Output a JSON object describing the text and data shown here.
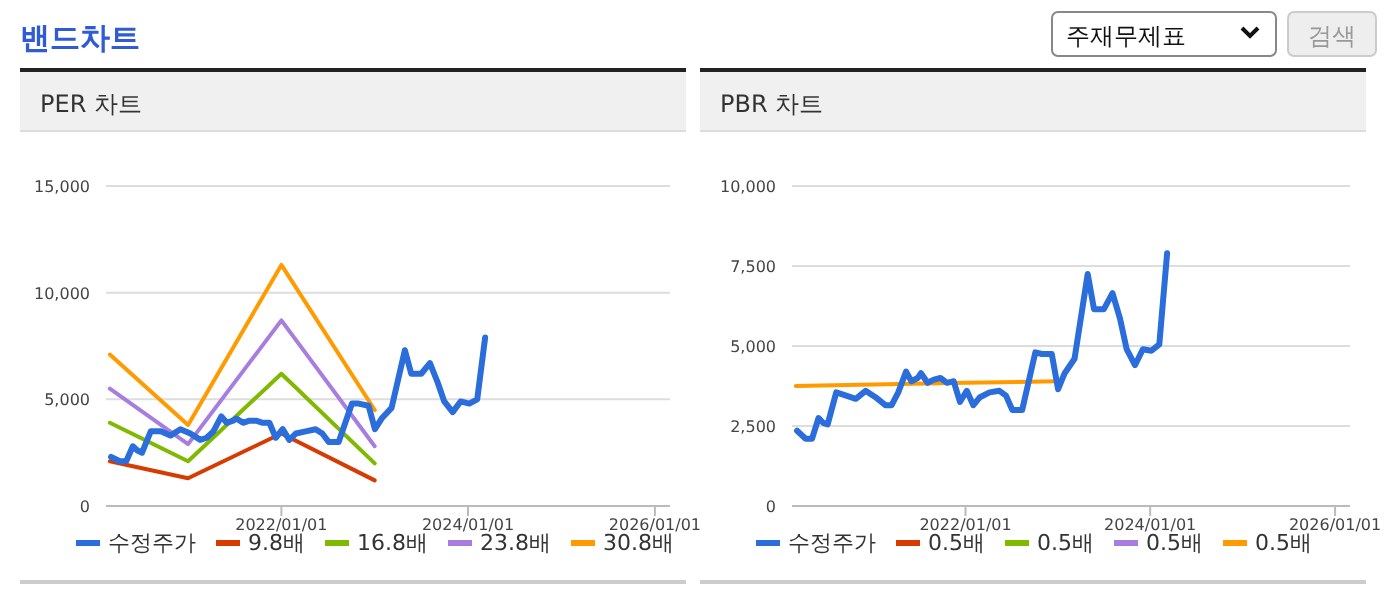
{
  "chart_data": [
    {
      "type": "other",
      "title": "밴드차트",
      "annotations": [
        "주재무제표",
        "검색"
      ]
    },
    {
      "type": "line",
      "title": "PER 차트",
      "xlim": [
        "2020-02-15",
        "2026-03-01"
      ],
      "xticks": [
        {
          "value": "2022-01-01",
          "label": "2022/01/01"
        },
        {
          "value": "2024-01-01",
          "label": "2024/01/01"
        },
        {
          "value": "2026-01-01",
          "label": "2026/01/01"
        }
      ],
      "ylim": [
        0,
        15000
      ],
      "yticks": [
        0,
        {
          "value": 5000,
          "label": "5,000"
        },
        {
          "value": 10000,
          "label": "10,000"
        },
        {
          "value": 15000,
          "label": "15,000"
        }
      ],
      "grid": "y",
      "legend": "bottom",
      "marker": "none",
      "line_style": "solid",
      "series": [
        {
          "name": "수정주가",
          "color": "#2a6ddb",
          "x": [
            "2020-03-06",
            "2020-04-09",
            "2020-05-04",
            "2020-05-30",
            "2020-06-17",
            "2020-07-05",
            "2020-08-08",
            "2020-09-16",
            "2020-10-24",
            "2020-12-02",
            "2021-01-10",
            "2021-02-18",
            "2021-03-15",
            "2021-04-10",
            "2021-05-11",
            "2021-06-01",
            "2021-06-26",
            "2021-07-09",
            "2021-08-04",
            "2021-08-29",
            "2021-09-24",
            "2021-10-20",
            "2021-11-15",
            "2021-12-10",
            "2022-01-06",
            "2022-02-01",
            "2022-02-27",
            "2022-04-06",
            "2022-05-15",
            "2022-06-10",
            "2022-07-05",
            "2022-08-13",
            "2022-10-04",
            "2022-10-30",
            "2022-12-08",
            "2023-01-02",
            "2023-01-28",
            "2023-03-08",
            "2023-04-29",
            "2023-05-24",
            "2023-07-02",
            "2023-08-05",
            "2023-09-04",
            "2023-09-30",
            "2023-11-02",
            "2023-12-03",
            "2024-01-06",
            "2024-02-06",
            "2024-03-08"
          ],
          "values": [
            2300,
            2100,
            2100,
            2800,
            2600,
            2500,
            3500,
            3500,
            3300,
            3600,
            3400,
            3100,
            3200,
            3500,
            4200,
            3900,
            4000,
            4100,
            3900,
            4000,
            4000,
            3900,
            3900,
            3200,
            3600,
            3100,
            3400,
            3500,
            3600,
            3400,
            3000,
            3000,
            4800,
            4800,
            4700,
            3600,
            4100,
            4600,
            7300,
            6200,
            6200,
            6700,
            5800,
            4900,
            4400,
            4900,
            4800,
            5000,
            7900
          ]
        },
        {
          "name": "9.8배",
          "color": "#d83b01",
          "x": [
            "2020-03-01",
            "2021-01-01",
            "2022-01-01",
            "2023-01-01"
          ],
          "values": [
            2100,
            1300,
            3400,
            1200
          ]
        },
        {
          "name": "16.8배",
          "color": "#7fba00",
          "x": [
            "2020-03-01",
            "2021-01-01",
            "2022-01-01",
            "2023-01-01"
          ],
          "values": [
            3900,
            2100,
            6200,
            2000
          ]
        },
        {
          "name": "23.8배",
          "color": "#a77ee0",
          "x": [
            "2020-03-01",
            "2021-01-01",
            "2022-01-01",
            "2023-01-01"
          ],
          "values": [
            5500,
            2900,
            8700,
            2800
          ]
        },
        {
          "name": "30.8배",
          "color": "#ff9a00",
          "x": [
            "2020-03-01",
            "2021-01-01",
            "2022-01-01",
            "2023-01-01"
          ],
          "values": [
            7100,
            3800,
            11300,
            4500
          ]
        }
      ]
    },
    {
      "type": "line",
      "title": "PBR 차트",
      "xlim": [
        "2020-02-15",
        "2026-03-01"
      ],
      "xticks": [
        {
          "value": "2022-01-01",
          "label": "2022/01/01"
        },
        {
          "value": "2024-01-01",
          "label": "2024/01/01"
        },
        {
          "value": "2026-01-01",
          "label": "2026/01/01"
        }
      ],
      "ylim": [
        0,
        10000
      ],
      "yticks": [
        0,
        {
          "value": 2500,
          "label": "2,500"
        },
        {
          "value": 5000,
          "label": "5,000"
        },
        {
          "value": 7500,
          "label": "7,500"
        },
        {
          "value": 10000,
          "label": "10,000"
        }
      ],
      "grid": "y",
      "legend": "bottom",
      "marker": "none",
      "line_style": "solid",
      "series": [
        {
          "name": "수정주가",
          "color": "#2a6ddb",
          "x": [
            "2020-03-06",
            "2020-04-09",
            "2020-05-04",
            "2020-05-30",
            "2020-06-17",
            "2020-07-05",
            "2020-08-08",
            "2020-09-16",
            "2020-10-24",
            "2020-12-02",
            "2021-01-10",
            "2021-02-18",
            "2021-03-15",
            "2021-04-10",
            "2021-05-11",
            "2021-06-01",
            "2021-06-26",
            "2021-07-09",
            "2021-08-04",
            "2021-08-29",
            "2021-09-24",
            "2021-10-20",
            "2021-11-15",
            "2021-12-10",
            "2022-01-06",
            "2022-02-01",
            "2022-02-27",
            "2022-04-06",
            "2022-05-15",
            "2022-06-10",
            "2022-07-05",
            "2022-08-13",
            "2022-10-04",
            "2022-10-30",
            "2022-12-08",
            "2023-01-02",
            "2023-01-28",
            "2023-03-08",
            "2023-04-29",
            "2023-05-24",
            "2023-07-02",
            "2023-08-05",
            "2023-09-04",
            "2023-09-30",
            "2023-11-02",
            "2023-12-03",
            "2024-01-06",
            "2024-02-06",
            "2024-03-08"
          ],
          "values": [
            2350,
            2100,
            2100,
            2750,
            2600,
            2550,
            3550,
            3450,
            3350,
            3600,
            3400,
            3150,
            3150,
            3550,
            4200,
            3900,
            4000,
            4150,
            3850,
            3950,
            4000,
            3850,
            3900,
            3250,
            3600,
            3150,
            3400,
            3550,
            3600,
            3450,
            3000,
            3000,
            4800,
            4750,
            4750,
            3650,
            4150,
            4600,
            7250,
            6150,
            6150,
            6650,
            5850,
            4900,
            4400,
            4900,
            4850,
            5050,
            7900
          ]
        },
        {
          "name": "0.5배",
          "color": "#d83b01"
        },
        {
          "name": "0.5배",
          "color": "#7fba00"
        },
        {
          "name": "0.5배",
          "color": "#a77ee0"
        },
        {
          "name": "0.5배",
          "color": "#ff9a00",
          "x": [
            "2020-03-01",
            "2021-01-01",
            "2022-01-01",
            "2023-01-01"
          ],
          "values": [
            3750,
            3800,
            3850,
            3900
          ]
        }
      ]
    }
  ]
}
